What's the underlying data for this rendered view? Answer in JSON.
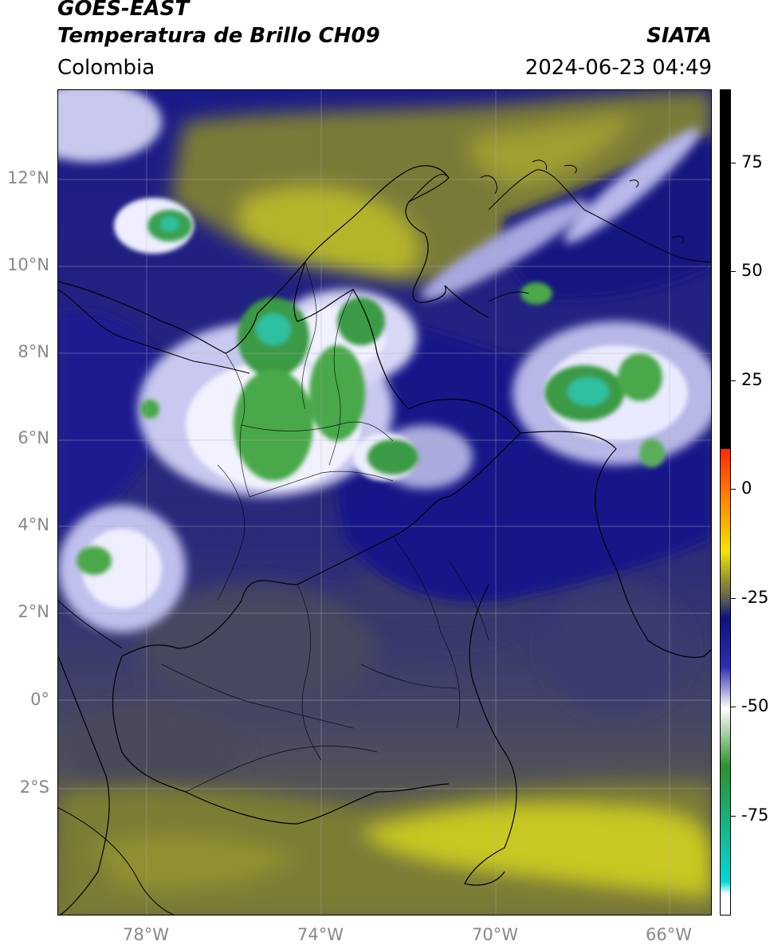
{
  "header": {
    "title_line1": "GOES-EAST",
    "title_line2": "Temperatura de Brillo CH09",
    "agency": "SIATA",
    "region": "Colombia",
    "timestamp": "2024-06-23 04:49"
  },
  "map": {
    "lat_ticks": [
      "12°N",
      "10°N",
      "8°N",
      "6°N",
      "4°N",
      "2°N",
      "0°",
      "2°S"
    ],
    "lon_ticks": [
      "78°W",
      "74°W",
      "70°W",
      "66°W"
    ],
    "gridlines": true
  },
  "colorbar": {
    "labels": [
      "75",
      "50",
      "25",
      "0",
      "-25",
      "-50",
      "-75"
    ],
    "colors": {
      "warm_black": "#000000",
      "red": "#ff2a00",
      "orange": "#ff8c00",
      "yellow": "#f0e600",
      "olive": "#9c9c2a",
      "gray": "#555555",
      "navy": "#101080",
      "blue": "#3030b0",
      "white": "#ffffff",
      "green": "#2f8f2f",
      "cyan": "#00d8d8"
    }
  }
}
